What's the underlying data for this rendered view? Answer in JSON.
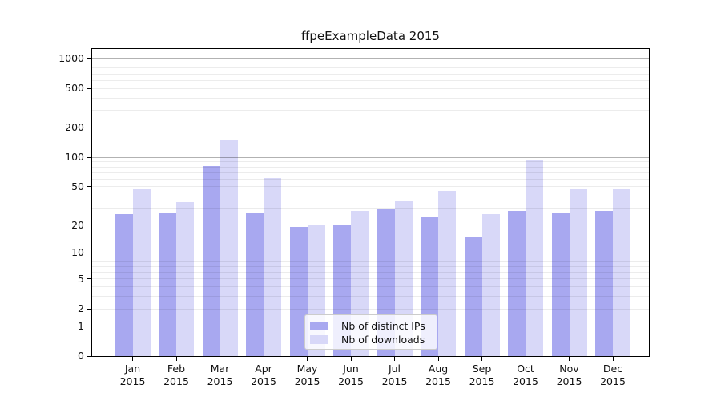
{
  "title": "ffpeExampleData 2015",
  "chart_data": {
    "type": "bar",
    "scale": "log1p",
    "title": "ffpeExampleData 2015",
    "xlabel": "",
    "ylabel": "",
    "year": "2015",
    "categories": [
      "Jan",
      "Feb",
      "Mar",
      "Apr",
      "May",
      "Jun",
      "Jul",
      "Aug",
      "Sep",
      "Oct",
      "Nov",
      "Dec"
    ],
    "series": [
      {
        "name": "Nb of distinct IPs",
        "color": "#a8a8f0",
        "values": [
          26,
          27,
          81,
          27,
          19,
          20,
          29,
          24,
          15,
          28,
          27,
          28
        ]
      },
      {
        "name": "Nb of downloads",
        "color": "#d8d8f8",
        "values": [
          47,
          35,
          150,
          62,
          20,
          28,
          36,
          45,
          26,
          93,
          47,
          47
        ]
      }
    ],
    "y_ticks": [
      0,
      1,
      2,
      5,
      10,
      20,
      50,
      100,
      200,
      500,
      1000
    ],
    "ylim": [
      0,
      1250
    ],
    "grid": true,
    "legend_position": "lower-center"
  },
  "legend": {
    "items": [
      {
        "label": "Nb of distinct IPs",
        "color": "#a8a8f0"
      },
      {
        "label": "Nb of downloads",
        "color": "#d8d8f8"
      }
    ]
  }
}
